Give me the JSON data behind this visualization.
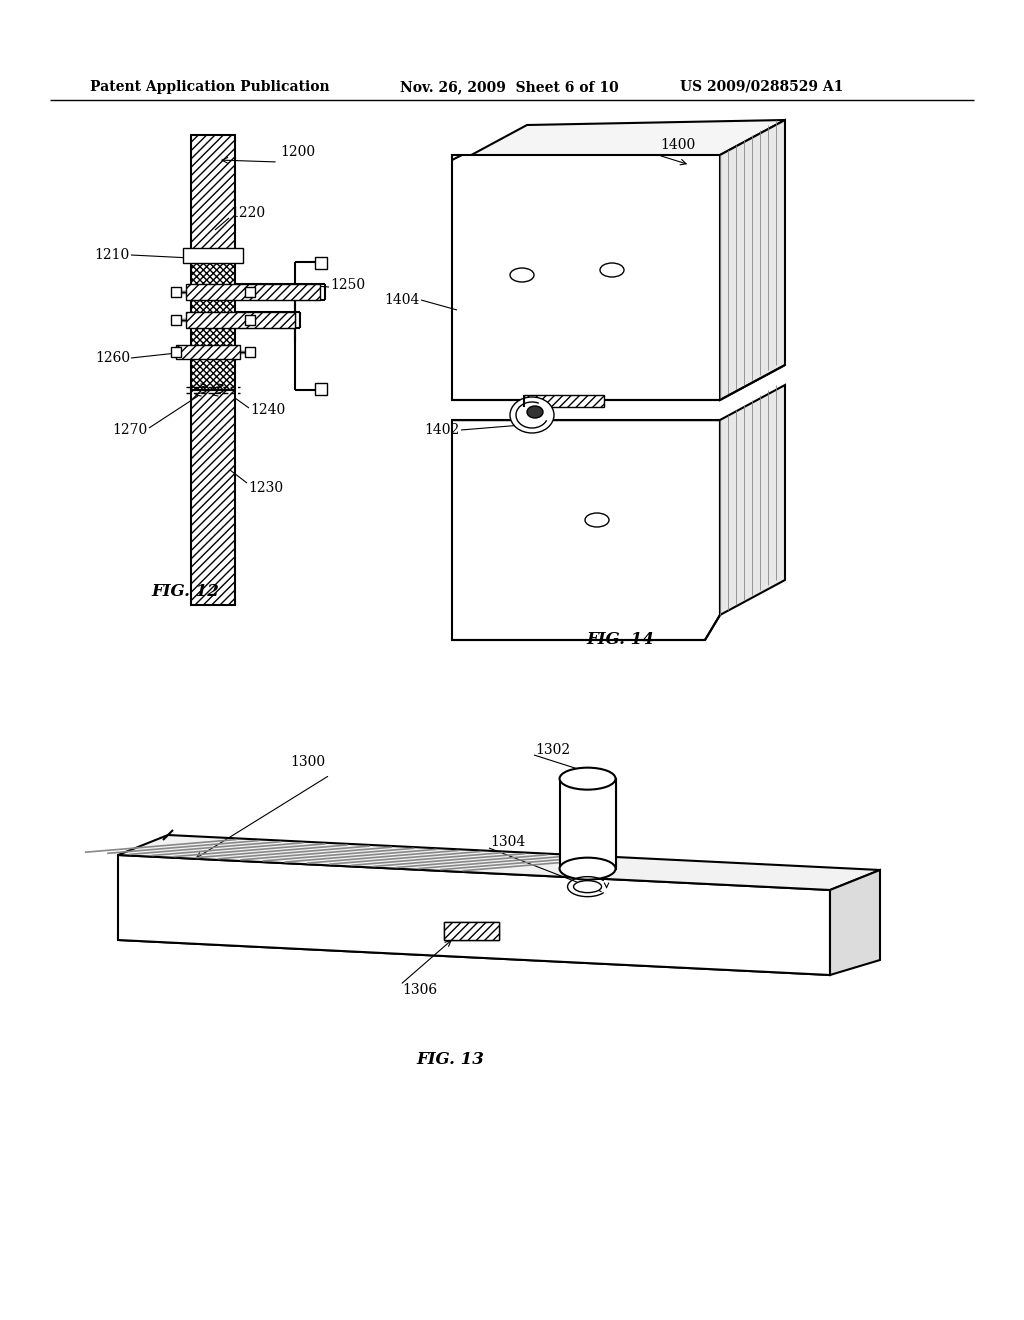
{
  "bg_color": "#ffffff",
  "header_left": "Patent Application Publication",
  "header_mid": "Nov. 26, 2009  Sheet 6 of 10",
  "header_right": "US 2009/0288529 A1",
  "fig12_caption": "FIG. 12",
  "fig13_caption": "FIG. 13",
  "fig14_caption": "FIG. 14"
}
